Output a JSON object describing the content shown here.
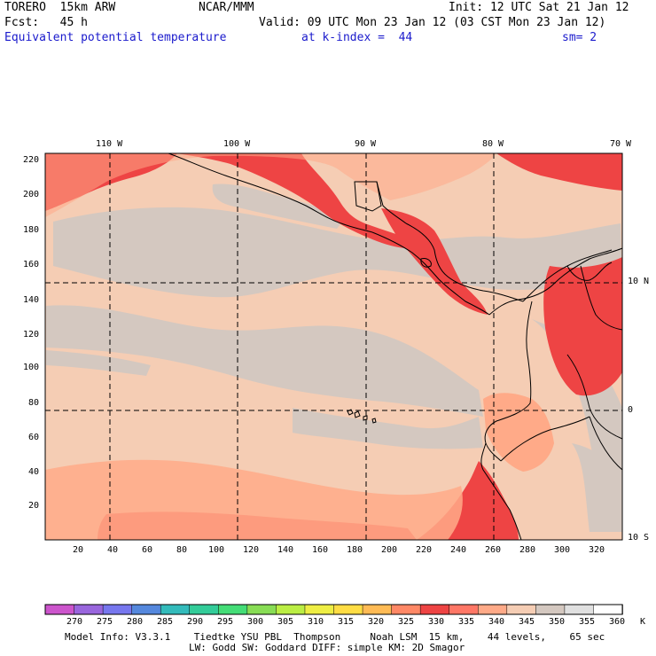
{
  "header": {
    "model": "TORERO  15km ARW",
    "org": "NCAR/MMM",
    "init": "Init: 12 UTC Sat 21 Jan 12",
    "fcst": "Fcst:   45 h",
    "valid": "Valid: 09 UTC Mon 23 Jan 12 (03 CST Mon 23 Jan 12)",
    "field": "Equivalent potential temperature",
    "level": "at k-index =  44",
    "smooth": "sm= 2"
  },
  "map": {
    "top_lon_labels": [
      "110 W",
      "100 W",
      "90 W",
      "80 W",
      "70 W"
    ],
    "right_lat_labels": [
      "10 N",
      "0",
      "10 S"
    ],
    "left_grid_labels": [
      "220",
      "200",
      "180",
      "160",
      "140",
      "120",
      "100",
      "80",
      "60",
      "40",
      "20"
    ],
    "bottom_grid_labels": [
      "20",
      "40",
      "60",
      "80",
      "100",
      "120",
      "140",
      "160",
      "180",
      "200",
      "220",
      "240",
      "260",
      "280",
      "300",
      "320"
    ]
  },
  "colorbar": {
    "labels": [
      "270",
      "275",
      "280",
      "285",
      "290",
      "295",
      "300",
      "305",
      "310",
      "315",
      "320",
      "325",
      "330",
      "335",
      "340",
      "345",
      "350",
      "355",
      "360"
    ],
    "unit": "K",
    "colors": [
      "#cc55cc",
      "#9966dd",
      "#7777ee",
      "#5588dd",
      "#33bbbb",
      "#33cc99",
      "#44dd77",
      "#88dd55",
      "#bbee44",
      "#eeee44",
      "#ffdd44",
      "#ffbb55",
      "#ff8866",
      "#ee4444",
      "#ff7766",
      "#ffaa88",
      "#f5cdb4",
      "#d4c8c0",
      "#e0e0e0",
      "#ffffff"
    ]
  },
  "footer": {
    "line1": "Model Info: V3.3.1    Tiedtke YSU PBL  Thompson     Noah LSM  15 km,    44 levels,    65 sec",
    "line2": "LW: Godd SW: Goddard DIFF: simple KM: 2D Smagor"
  }
}
